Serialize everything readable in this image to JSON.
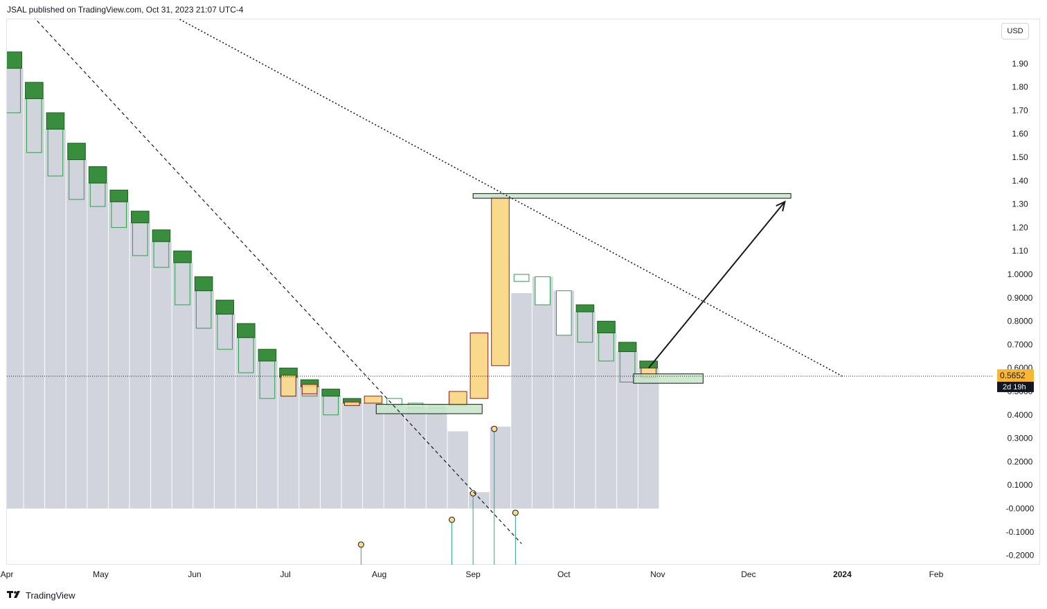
{
  "header": {
    "text": "JSAL published on TradingView.com, Oct 31, 2023 21:07 UTC-4"
  },
  "currency": "USD",
  "footer": {
    "brand": "TradingView",
    "logo": "tv-logo-icon"
  },
  "colors": {
    "bull_fill": "#388e3c",
    "bear_fill": "#f9d98b",
    "bear_border": "#9b1c1c",
    "bull_border": "#2e8b3a",
    "hollow_border": "#2e9e4a",
    "volume_area": "#d1d4dc",
    "zone_fill": "#c8e6c9",
    "price_label_bg": "#f7b733",
    "timer_bg": "#131722"
  },
  "chart_data": {
    "type": "candlestick",
    "title": "",
    "xlabel": "",
    "ylabel": "",
    "ylim": [
      -0.24,
      2.05
    ],
    "y_ticks": [
      "-0.2000",
      "-0.1000",
      "-0.0000",
      "0.1000",
      "0.2000",
      "0.3000",
      "0.4000",
      "0.5000",
      "0.6000",
      "0.7000",
      "0.8000",
      "0.9000",
      "1.0000",
      "1.10",
      "1.20",
      "1.30",
      "1.40",
      "1.50",
      "1.60",
      "1.70",
      "1.80",
      "1.90"
    ],
    "y_tick_values": [
      -0.2,
      -0.1,
      0,
      0.1,
      0.2,
      0.3,
      0.4,
      0.5,
      0.6,
      0.7,
      0.8,
      0.9,
      1.0,
      1.1,
      1.2,
      1.3,
      1.4,
      1.5,
      1.6,
      1.7,
      1.8,
      1.9
    ],
    "x_ticks": [
      "Apr",
      "May",
      "Jun",
      "Jul",
      "Aug",
      "Sep",
      "Oct",
      "Nov",
      "Dec",
      "2024",
      "Feb"
    ],
    "x_tick_dates": [
      "2023-03-31",
      "2023-05-01",
      "2023-06-01",
      "2023-07-01",
      "2023-08-01",
      "2023-09-01",
      "2023-10-01",
      "2023-11-01",
      "2023-12-01",
      "2024-01-01",
      "2024-02-01"
    ],
    "x_range": [
      "2023-03-31",
      "2024-02-20"
    ],
    "grid": false,
    "candles": [
      {
        "date": "2023-04-02",
        "high": 1.95,
        "box_top": 1.95,
        "box_bottom": 1.88,
        "low": 1.69,
        "volume": 1.88,
        "type": "bull"
      },
      {
        "date": "2023-04-09",
        "high": 1.82,
        "box_top": 1.82,
        "box_bottom": 1.75,
        "low": 1.52,
        "volume": 1.75,
        "type": "bull"
      },
      {
        "date": "2023-04-16",
        "high": 1.69,
        "box_top": 1.69,
        "box_bottom": 1.62,
        "low": 1.42,
        "volume": 1.62,
        "type": "bull"
      },
      {
        "date": "2023-04-23",
        "high": 1.56,
        "box_top": 1.56,
        "box_bottom": 1.49,
        "low": 1.32,
        "volume": 1.49,
        "type": "bull"
      },
      {
        "date": "2023-04-30",
        "high": 1.46,
        "box_top": 1.46,
        "box_bottom": 1.39,
        "low": 1.29,
        "volume": 1.39,
        "type": "bull"
      },
      {
        "date": "2023-05-07",
        "high": 1.36,
        "box_top": 1.36,
        "box_bottom": 1.31,
        "low": 1.2,
        "volume": 1.31,
        "type": "bull"
      },
      {
        "date": "2023-05-14",
        "high": 1.27,
        "box_top": 1.27,
        "box_bottom": 1.22,
        "low": 1.08,
        "volume": 1.22,
        "type": "bull"
      },
      {
        "date": "2023-05-21",
        "high": 1.19,
        "box_top": 1.19,
        "box_bottom": 1.14,
        "low": 1.03,
        "volume": 1.14,
        "type": "bull"
      },
      {
        "date": "2023-05-28",
        "high": 1.1,
        "box_top": 1.1,
        "box_bottom": 1.05,
        "low": 0.87,
        "volume": 1.05,
        "type": "bull"
      },
      {
        "date": "2023-06-04",
        "high": 0.99,
        "box_top": 0.99,
        "box_bottom": 0.93,
        "low": 0.77,
        "volume": 0.93,
        "type": "bull"
      },
      {
        "date": "2023-06-11",
        "high": 0.89,
        "box_top": 0.89,
        "box_bottom": 0.83,
        "low": 0.68,
        "volume": 0.83,
        "type": "bull"
      },
      {
        "date": "2023-06-18",
        "high": 0.79,
        "box_top": 0.79,
        "box_bottom": 0.73,
        "low": 0.58,
        "volume": 0.73,
        "type": "bull"
      },
      {
        "date": "2023-06-25",
        "high": 0.68,
        "box_top": 0.68,
        "box_bottom": 0.63,
        "low": 0.47,
        "volume": 0.63,
        "type": "bull"
      },
      {
        "date": "2023-07-02",
        "high": 0.6,
        "box_top": 0.6,
        "box_bottom": 0.56,
        "low": 0.48,
        "volume": 0.56,
        "type": "bull",
        "overlay": {
          "top": 0.57,
          "bottom": 0.48
        }
      },
      {
        "date": "2023-07-09",
        "high": 0.55,
        "box_top": 0.55,
        "box_bottom": 0.52,
        "low": 0.48,
        "volume": 0.52,
        "type": "bull",
        "overlay": {
          "top": 0.53,
          "bottom": 0.49
        }
      },
      {
        "date": "2023-07-16",
        "high": 0.51,
        "box_top": 0.51,
        "box_bottom": 0.48,
        "low": 0.4,
        "volume": 0.48,
        "type": "bull"
      },
      {
        "date": "2023-07-23",
        "high": 0.47,
        "box_top": 0.47,
        "box_bottom": 0.45,
        "low": 0.44,
        "volume": 0.45,
        "type": "bull",
        "overlay": {
          "top": 0.455,
          "bottom": 0.44
        }
      },
      {
        "date": "2023-07-30",
        "high": 0.48,
        "box_top": 0.48,
        "box_bottom": 0.45,
        "low": 0.45,
        "volume": 0.45,
        "type": "bear"
      },
      {
        "date": "2023-08-06",
        "high": 0.47,
        "box_top": 0.47,
        "box_bottom": 0.44,
        "low": 0.44,
        "volume": 0.44,
        "type": "hollow"
      },
      {
        "date": "2023-08-13",
        "high": 0.45,
        "box_top": 0.45,
        "box_bottom": 0.43,
        "low": 0.43,
        "volume": 0.43,
        "type": "hollow"
      },
      {
        "date": "2023-08-20",
        "high": 0.44,
        "box_top": 0.44,
        "box_bottom": 0.43,
        "low": 0.43,
        "volume": 0.43,
        "type": "hollow"
      },
      {
        "date": "2023-08-27",
        "high": 0.5,
        "box_top": 0.5,
        "box_bottom": 0.44,
        "low": 0.44,
        "volume": 0.33,
        "type": "bear"
      },
      {
        "date": "2023-09-03",
        "high": 0.75,
        "box_top": 0.75,
        "box_bottom": 0.47,
        "low": 0.47,
        "volume": 0.07,
        "type": "bear"
      },
      {
        "date": "2023-09-10",
        "high": 1.33,
        "box_top": 1.33,
        "box_bottom": 0.61,
        "low": 0.61,
        "volume": 0.35,
        "type": "bear"
      },
      {
        "date": "2023-09-17",
        "high": 1.0,
        "box_top": 1.0,
        "box_bottom": 0.97,
        "low": 0.97,
        "volume": 0.92,
        "type": "hollow"
      },
      {
        "date": "2023-09-24",
        "high": 0.99,
        "box_top": 0.99,
        "box_bottom": 0.87,
        "low": 0.87,
        "volume": 0.99,
        "type": "hollow"
      },
      {
        "date": "2023-10-01",
        "high": 0.93,
        "box_top": 0.93,
        "box_bottom": 0.74,
        "low": 0.74,
        "volume": 0.93,
        "type": "hollow"
      },
      {
        "date": "2023-10-08",
        "high": 0.87,
        "box_top": 0.87,
        "box_bottom": 0.84,
        "low": 0.71,
        "volume": 0.84,
        "type": "bull"
      },
      {
        "date": "2023-10-15",
        "high": 0.8,
        "box_top": 0.8,
        "box_bottom": 0.75,
        "low": 0.63,
        "volume": 0.75,
        "type": "bull"
      },
      {
        "date": "2023-10-22",
        "high": 0.71,
        "box_top": 0.71,
        "box_bottom": 0.67,
        "low": 0.54,
        "volume": 0.67,
        "type": "bull"
      },
      {
        "date": "2023-10-29",
        "high": 0.63,
        "box_top": 0.63,
        "box_bottom": 0.6,
        "low": 0.56,
        "volume": 0.6,
        "type": "bull",
        "overlay": {
          "top": 0.6,
          "bottom": 0.56
        }
      }
    ],
    "spikes": [
      {
        "date": "2023-07-26",
        "top": -0.154,
        "bottom": -0.24
      },
      {
        "date": "2023-08-25",
        "top": -0.048,
        "bottom": -0.24
      },
      {
        "date": "2023-09-01",
        "top": 0.065,
        "bottom": -0.24
      },
      {
        "date": "2023-09-08",
        "top": 0.34,
        "bottom": -0.24
      },
      {
        "date": "2023-09-15",
        "top": -0.018,
        "bottom": -0.24
      }
    ],
    "annotations": {
      "zones": [
        {
          "name": "resistance-zone",
          "start": "2023-09-01",
          "end": "2023-12-15",
          "y_top": 1.345,
          "y_bottom": 1.325
        },
        {
          "name": "support-zone-low",
          "start": "2023-07-31",
          "end": "2023-09-04",
          "y_top": 0.445,
          "y_bottom": 0.405
        },
        {
          "name": "support-zone-current",
          "start": "2023-10-24",
          "end": "2023-11-16",
          "y_top": 0.575,
          "y_bottom": 0.535
        }
      ],
      "dashed_trendline": {
        "start": {
          "date": "2023-04-03",
          "y": 2.18
        },
        "end": {
          "date": "2023-09-17",
          "y": -0.15
        }
      },
      "dotted_trendline": {
        "start": {
          "date": "2023-05-14",
          "y": 2.18
        },
        "end": {
          "date": "2024-01-01",
          "y": 0.565
        }
      },
      "arrow": {
        "start": {
          "date": "2023-10-29",
          "y": 0.6
        },
        "end": {
          "date": "2023-12-13",
          "y": 1.31
        }
      },
      "price_line": 0.5652
    },
    "last_price_label": "0.5652",
    "bar_timer": "2d 19h"
  }
}
